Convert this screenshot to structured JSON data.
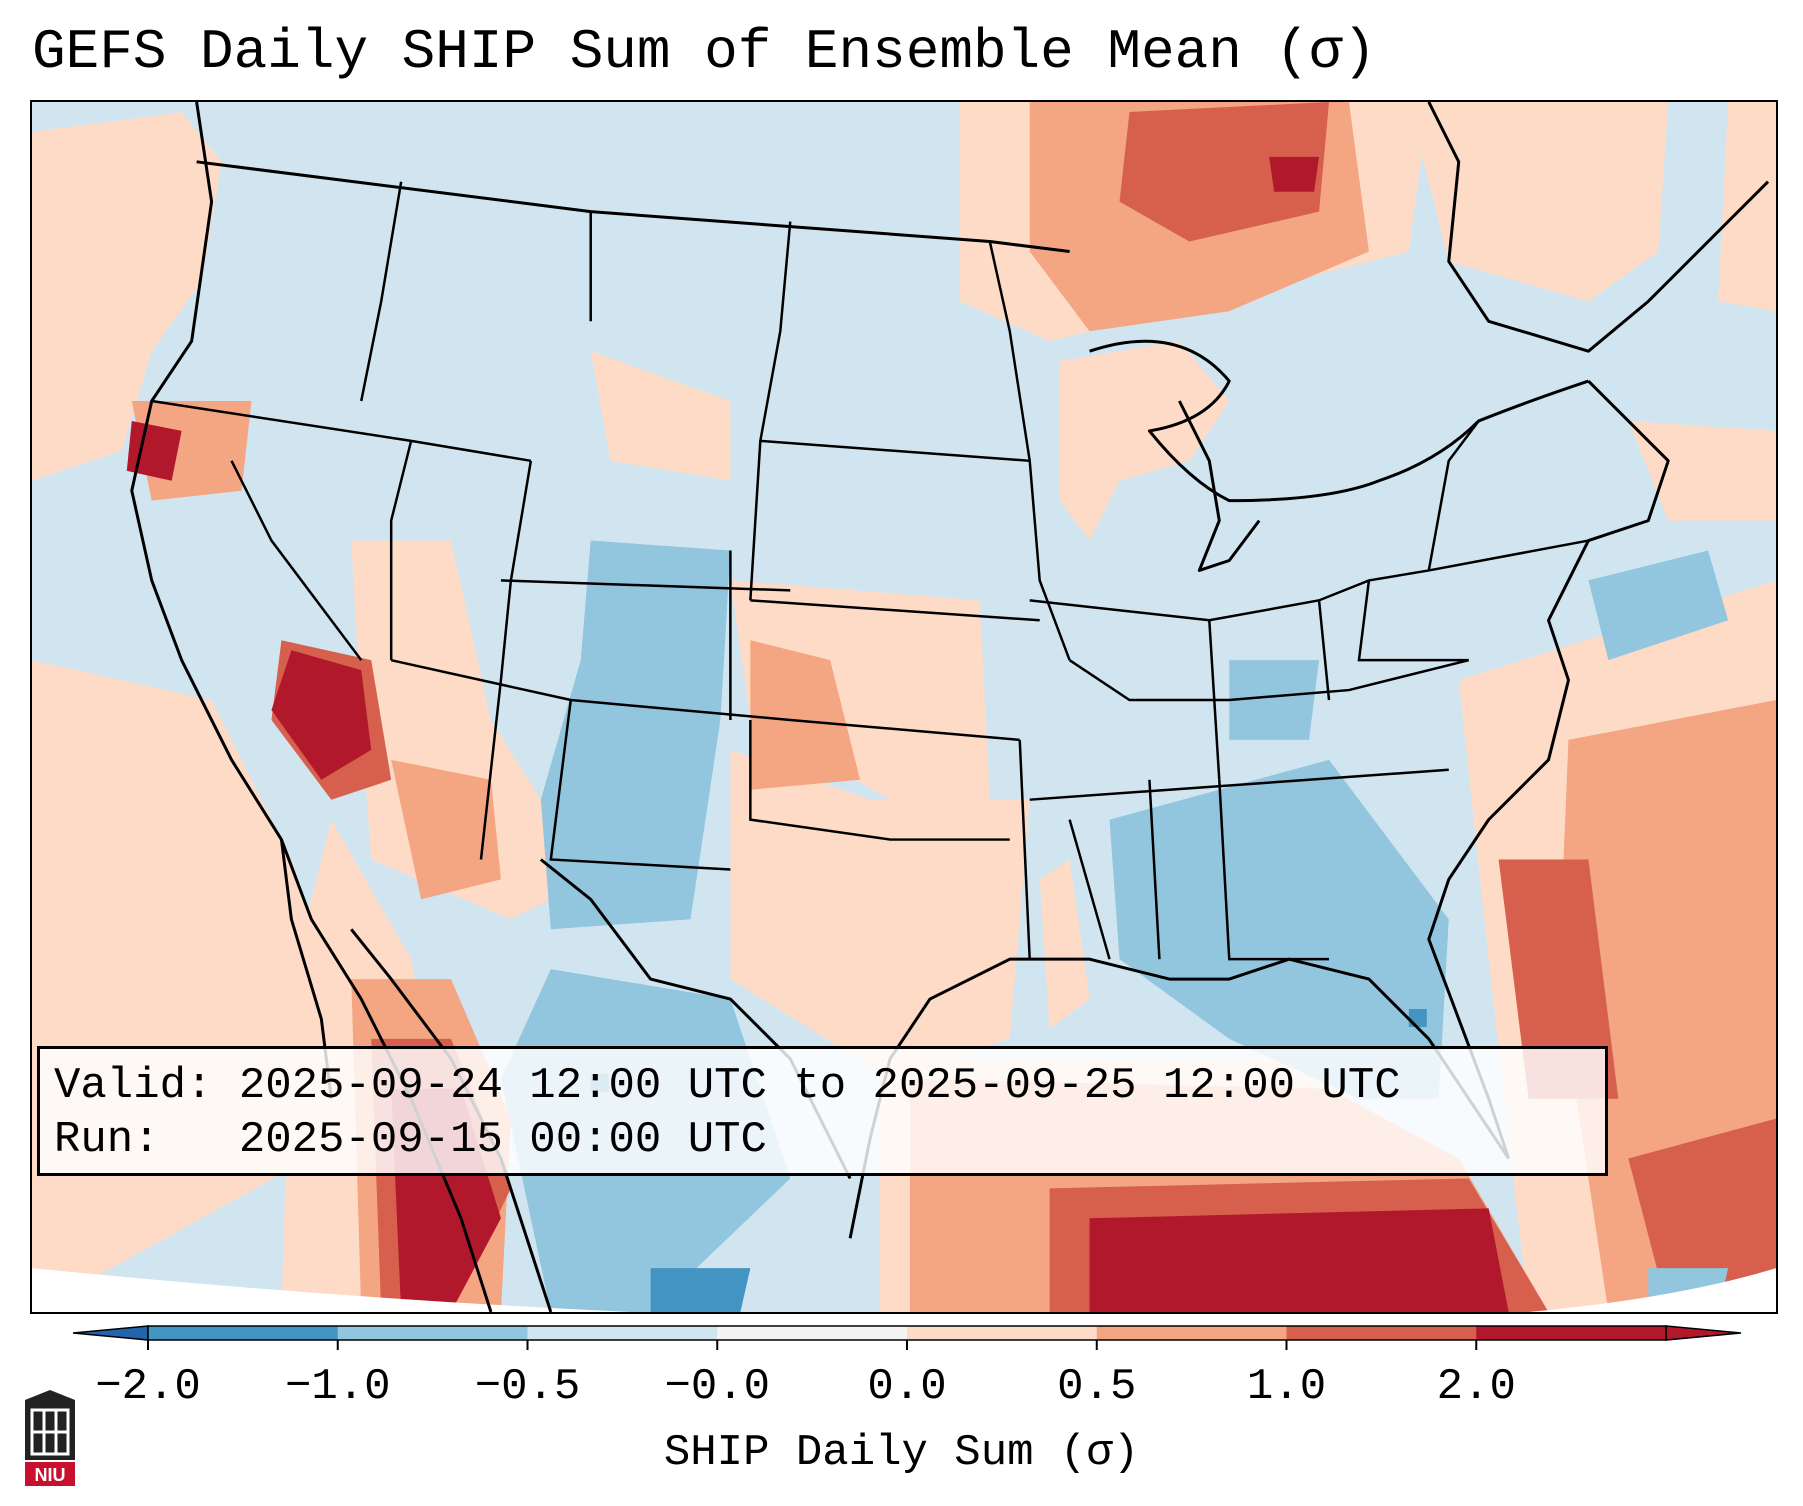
{
  "title": "GEFS Daily SHIP Sum of Ensemble Mean (σ)",
  "info": {
    "valid_label": "Valid:",
    "valid_value": "2025-09-24 12:00 UTC to 2025-09-25 12:00 UTC",
    "run_label": "Run:",
    "run_value": "2025-09-15 00:00 UTC"
  },
  "colorbar": {
    "label": "SHIP Daily Sum (σ)",
    "ticks": [
      "−2.0",
      "−1.0",
      "−0.5",
      "−0.0",
      "0.0",
      "0.5",
      "1.0",
      "2.0"
    ],
    "bin_colors": [
      "#4393c3",
      "#92c5de",
      "#d1e5f0",
      "#f4f4f4",
      "#fddbc7",
      "#f4a582",
      "#d6604d",
      "#b2182b"
    ],
    "extend": "both"
  },
  "map": {
    "region": "CONUS",
    "ocean_color": "#d1e5f0",
    "boundary_color": "#000000"
  },
  "logo": {
    "text": "NIU",
    "color": "#c8102e"
  }
}
